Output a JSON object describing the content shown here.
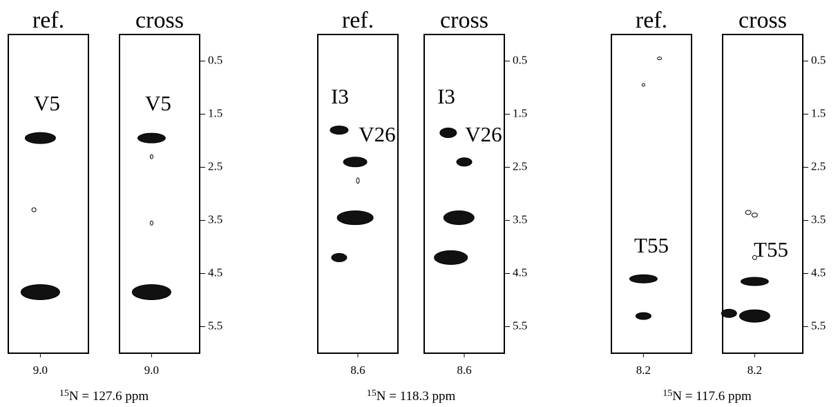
{
  "chart_data": [
    {
      "type": "contour",
      "xlim": [
        9.1,
        8.85
      ],
      "xticks": [
        {
          "value": 9.0,
          "label": "9.0"
        }
      ],
      "ylim": [
        0,
        6
      ],
      "yticks": [
        0.5,
        1.5,
        2.5,
        3.5,
        4.5,
        5.5
      ],
      "isotope": "15",
      "caption": "N = 127.6 ppm",
      "panels": [
        {
          "title": "ref.",
          "labels": [
            "V5"
          ],
          "x": [
            9.0,
            9.02,
            9.0
          ],
          "y": [
            1.95,
            3.3,
            4.85
          ]
        },
        {
          "title": "cross",
          "labels": [
            "V5"
          ],
          "x": [
            9.0,
            9.0,
            9.0,
            9.0
          ],
          "y": [
            1.95,
            2.3,
            3.55,
            4.85
          ]
        }
      ]
    },
    {
      "type": "contour",
      "xlim": [
        8.75,
        8.45
      ],
      "xticks": [
        8.6
      ],
      "ylim": [
        0,
        6
      ],
      "yticks": [
        0.5,
        1.5,
        2.5,
        3.5,
        4.5,
        5.5
      ],
      "isotope": "15",
      "caption": "N = 118.3 ppm",
      "panels": [
        {
          "title": "ref.",
          "labels": [
            "I3",
            "V26"
          ],
          "x": [
            8.67,
            8.61,
            8.61,
            8.67,
            8.6
          ],
          "y": [
            1.8,
            2.4,
            3.45,
            4.2,
            2.75
          ]
        },
        {
          "title": "cross",
          "labels": [
            "I3",
            "V26"
          ],
          "x": [
            8.66,
            8.6,
            8.62,
            8.65
          ],
          "y": [
            1.85,
            2.4,
            3.45,
            4.2
          ]
        }
      ]
    },
    {
      "type": "contour",
      "xlim": [
        8.3,
        8.05
      ],
      "xticks": [
        8.2
      ],
      "ylim": [
        0,
        6
      ],
      "yticks": [
        0.5,
        1.5,
        2.5,
        3.5,
        4.5,
        5.5
      ],
      "isotope": "15",
      "caption": "N = 117.6 ppm",
      "panels": [
        {
          "title": "ref.",
          "labels": [
            "T55"
          ],
          "x": [
            8.2,
            8.2,
            8.2,
            8.15
          ],
          "y": [
            4.6,
            5.3,
            0.95,
            0.45
          ]
        },
        {
          "title": "cross",
          "labels": [
            "T55"
          ],
          "x": [
            8.2,
            8.2,
            8.28,
            8.22,
            8.2,
            8.2
          ],
          "y": [
            4.65,
            5.3,
            5.25,
            3.35,
            3.4,
            4.2
          ]
        }
      ]
    }
  ]
}
